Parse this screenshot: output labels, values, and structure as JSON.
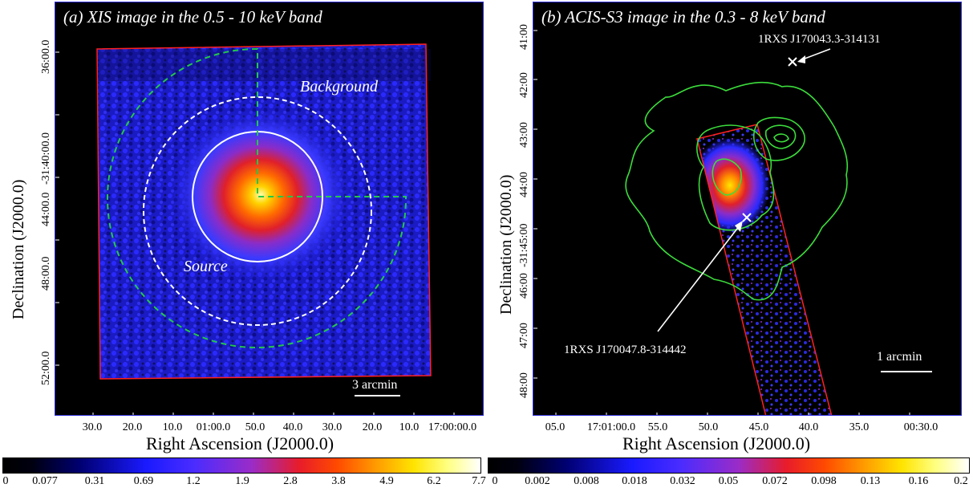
{
  "panel_a": {
    "title": "(a) XIS image in the 0.5 - 10 keV band",
    "label_background": "Background",
    "label_source": "Source",
    "scale_label": "3 arcmin",
    "ylabel": "Declination (J2000.0)",
    "xlabel": "Right Ascension (J2000.0)",
    "yticks": [
      "36:00.0",
      "-31:40:00.0",
      "44:00.0",
      "48:00.0",
      "52:00.0"
    ],
    "xticks": [
      "30.0",
      "20.0",
      "10.0",
      "01:00.0",
      "50.0",
      "40.0",
      "30.0",
      "20.0",
      "10.0",
      "17:00:00.0"
    ],
    "colorbar_ticks": [
      "0",
      "0.077",
      "0.31",
      "0.69",
      "1.2",
      "1.9",
      "2.8",
      "3.8",
      "4.9",
      "6.2",
      "7.7"
    ]
  },
  "panel_b": {
    "title": "(b) ACIS-S3 image in the 0.3 - 8 keV band",
    "source_1": "1RXS J170043.3-314131",
    "source_2": "1RXS J170047.8-314442",
    "scale_label": "1 arcmin",
    "ylabel": "Declination (J2000.0)",
    "xlabel": "Right Ascension (J2000.0)",
    "yticks": [
      "41:00",
      "42:00",
      "43:00",
      "44:00",
      "-31:45:00",
      "46:00",
      "47:00",
      "48:00"
    ],
    "xticks": [
      "05.0",
      "17:01:00.0",
      "55.0",
      "50.0",
      "45.0",
      "40.0",
      "35.0",
      "00:30.0"
    ],
    "colorbar_ticks": [
      "0",
      "0.002",
      "0.008",
      "0.018",
      "0.032",
      "0.05",
      "0.072",
      "0.098",
      "0.13",
      "0.16",
      "0.2"
    ]
  },
  "colors": {
    "frame_blue": "#2b2bd8",
    "region_red": "#ff2020",
    "contour_green": "#3cdc3c",
    "region_white": "#ffffff",
    "arc_green": "#22c84a"
  }
}
